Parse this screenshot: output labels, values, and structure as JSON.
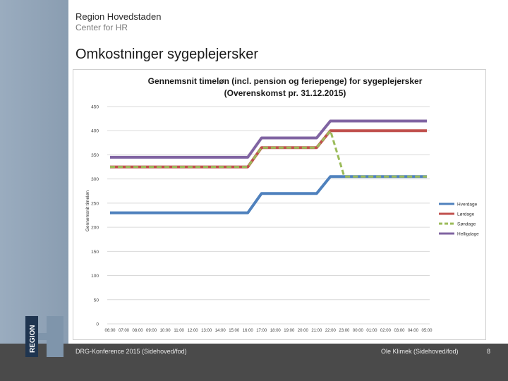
{
  "header": {
    "org": "Region Hovedstaden",
    "dept": "Center for HR",
    "title": "Omkostninger sygeplejersker"
  },
  "footer": {
    "left": "DRG-Konference 2015 (Sidehoved/fod)",
    "right": "Ole Klimek (Sidehoved/fod)",
    "page": "8"
  },
  "logo": {
    "text": "REGION"
  },
  "colors": {
    "hverdage": "#4f81bd",
    "loerdage": "#c0504d",
    "soendage": "#9bbb59",
    "helligdage": "#8064a2"
  },
  "chart_data": {
    "type": "line",
    "title_line1": "Gennemsnit timeløn (incl. pension og feriepenge) for sygeplejersker",
    "title_line2": "(Overenskomst pr. 31.12.2015)",
    "ylabel": "Gennemsnit timeløn",
    "ylim": [
      0,
      450
    ],
    "yticks": [
      "0",
      "50",
      "100",
      "150",
      "200",
      "250",
      "300",
      "350",
      "400",
      "450"
    ],
    "x": [
      "06:00",
      "07:00",
      "08:00",
      "09:00",
      "10:00",
      "11:00",
      "12:00",
      "13:00",
      "14:00",
      "15:00",
      "16:00",
      "17:00",
      "18:00",
      "19:00",
      "20:00",
      "21:00",
      "22:00",
      "23:00",
      "00:00",
      "01:00",
      "02:00",
      "03:00",
      "04:00",
      "05:00"
    ],
    "series": [
      {
        "name": "Hverdage",
        "color": "#4f81bd",
        "dashed": false,
        "values": [
          230,
          230,
          230,
          230,
          230,
          230,
          230,
          230,
          230,
          230,
          230,
          270,
          270,
          270,
          270,
          270,
          305,
          305,
          305,
          305,
          305,
          305,
          305,
          305
        ]
      },
      {
        "name": "Lørdage",
        "color": "#c0504d",
        "dashed": false,
        "values": [
          325,
          325,
          325,
          325,
          325,
          325,
          325,
          325,
          325,
          325,
          325,
          365,
          365,
          365,
          365,
          365,
          400,
          400,
          400,
          400,
          400,
          400,
          400,
          400
        ]
      },
      {
        "name": "Søndage",
        "color": "#9bbb59",
        "dashed": true,
        "values": [
          325,
          325,
          325,
          325,
          325,
          325,
          325,
          325,
          325,
          325,
          325,
          365,
          365,
          365,
          365,
          365,
          400,
          305,
          305,
          305,
          305,
          305,
          305,
          305
        ]
      },
      {
        "name": "Helligdage",
        "color": "#8064a2",
        "dashed": false,
        "values": [
          345,
          345,
          345,
          345,
          345,
          345,
          345,
          345,
          345,
          345,
          345,
          385,
          385,
          385,
          385,
          385,
          420,
          420,
          420,
          420,
          420,
          420,
          420,
          420
        ]
      }
    ],
    "legend_position": "right"
  }
}
